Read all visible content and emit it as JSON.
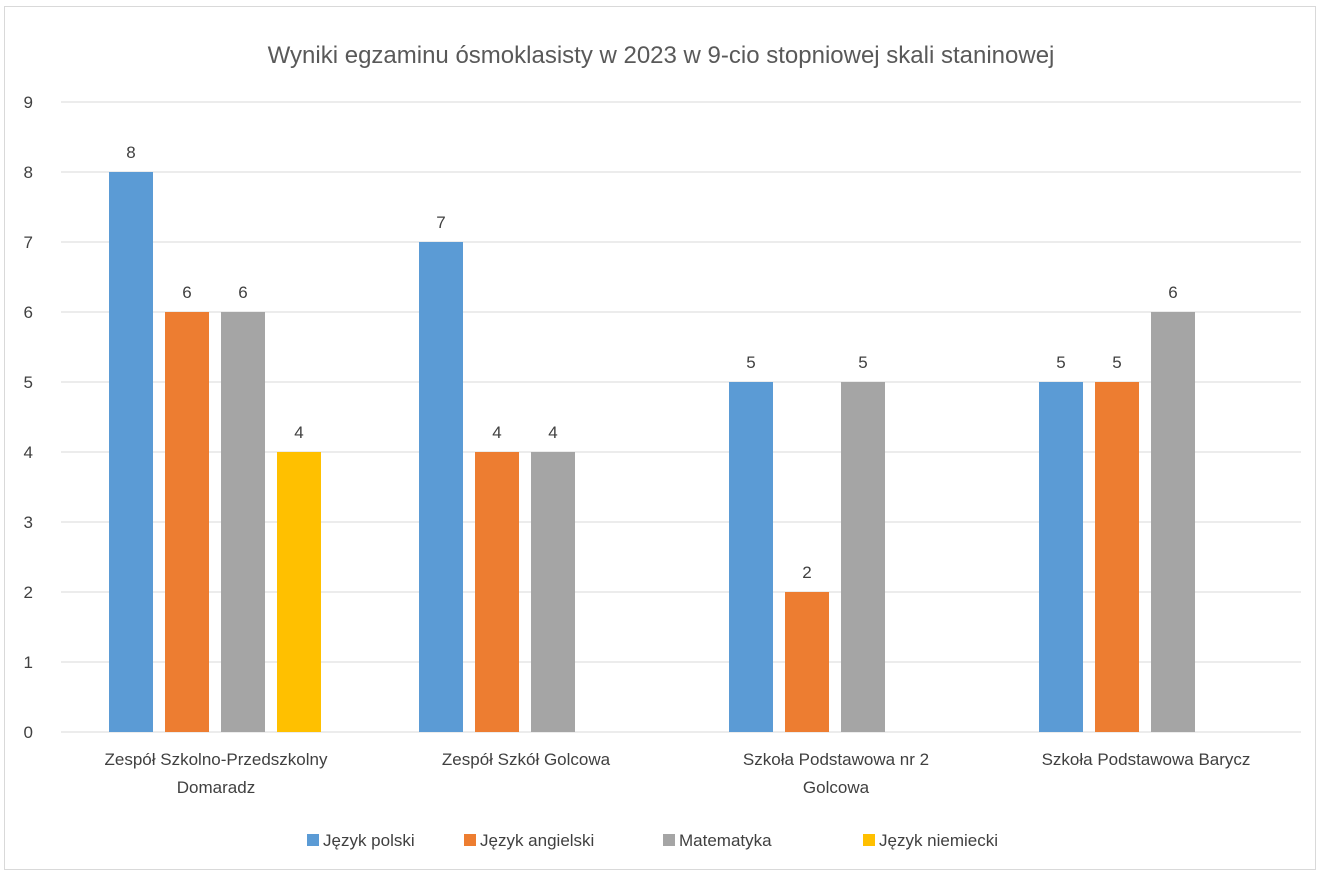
{
  "chart_data": {
    "type": "bar",
    "title": "Wyniki egzaminu ósmoklasisty w 2023 w 9-cio stopniowej skali staninowej",
    "xlabel": "",
    "ylabel": "",
    "ylim": [
      0,
      9
    ],
    "yticks": [
      "0",
      "1",
      "2",
      "3",
      "4",
      "5",
      "6",
      "7",
      "8",
      "9"
    ],
    "grid": true,
    "legend_position": "bottom",
    "categories": [
      [
        "Zespół Szkolno-Przedszkolny",
        "Domaradz"
      ],
      [
        "Zespół Szkół Golcowa"
      ],
      [
        "Szkoła Podstawowa nr 2",
        "Golcowa"
      ],
      [
        "Szkoła Podstawowa Barycz"
      ]
    ],
    "series": [
      {
        "name": "Język polski",
        "color": "#5b9bd5",
        "values": [
          8,
          7,
          5,
          5
        ]
      },
      {
        "name": "Język angielski",
        "color": "#ed7d31",
        "values": [
          6,
          4,
          2,
          5
        ]
      },
      {
        "name": "Matematyka",
        "color": "#a5a5a5",
        "values": [
          6,
          4,
          5,
          6
        ]
      },
      {
        "name": "Język niemiecki",
        "color": "#ffc000",
        "values": [
          4,
          null,
          null,
          null
        ]
      }
    ]
  }
}
